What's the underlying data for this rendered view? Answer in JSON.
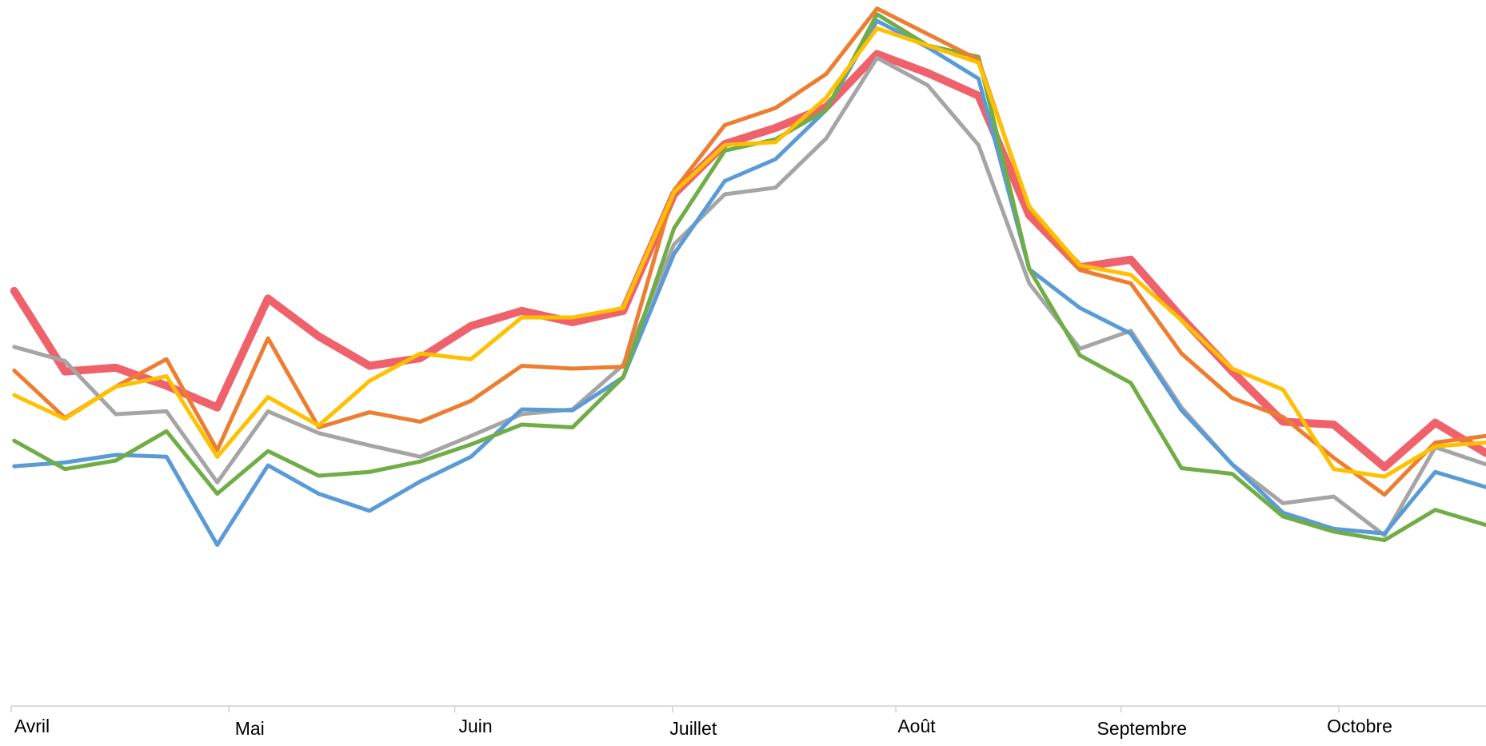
{
  "chart_data": {
    "type": "line",
    "x": [
      0,
      1,
      2,
      3,
      4,
      5,
      6,
      7,
      8,
      9,
      10,
      11,
      12,
      13,
      14,
      15,
      16,
      17,
      18,
      19,
      20,
      21,
      22,
      23,
      24,
      25,
      26,
      27,
      28,
      29
    ],
    "xlim": [
      -0.06,
      29
    ],
    "xticks": [
      {
        "value": -0.06,
        "label": "Avril"
      },
      {
        "value": 4.23,
        "label": "Mai"
      },
      {
        "value": 8.68,
        "label": "Juin"
      },
      {
        "value": 12.97,
        "label": "Juillet"
      },
      {
        "value": 17.37,
        "label": "Août"
      },
      {
        "value": 21.81,
        "label": "Septembre"
      },
      {
        "value": 26.1,
        "label": "Octobre"
      }
    ],
    "ylim": [
      0,
      745
    ],
    "series": [
      {
        "color": "#f0626b",
        "width": 10,
        "values": [
          438,
          353,
          357,
          338,
          315,
          430,
          390,
          359,
          367,
          401,
          417,
          405,
          417,
          540,
          593,
          610,
          632,
          688,
          668,
          644,
          518,
          463,
          471,
          410,
          353,
          300,
          297,
          252,
          299,
          267
        ]
      },
      {
        "color": "#a5a5a5",
        "width": 5,
        "values": [
          379,
          364,
          308,
          311,
          236,
          311,
          288,
          275,
          263,
          285,
          308,
          313,
          360,
          487,
          540,
          547,
          599,
          684,
          655,
          592,
          446,
          377,
          396,
          315,
          255,
          214,
          221,
          180,
          273,
          255
        ]
      },
      {
        "color": "#5b9bd5",
        "width": 5,
        "values": [
          253,
          257,
          265,
          263,
          170,
          254,
          224,
          206,
          237,
          263,
          313,
          312,
          347,
          477,
          554,
          577,
          629,
          723,
          695,
          662,
          461,
          420,
          393,
          312,
          255,
          204,
          187,
          182,
          247,
          231
        ]
      },
      {
        "color": "#70ad47",
        "width": 5,
        "values": [
          280,
          250,
          259,
          290,
          224,
          269,
          243,
          247,
          258,
          276,
          297,
          294,
          347,
          504,
          586,
          598,
          629,
          730,
          697,
          685,
          461,
          370,
          341,
          251,
          245,
          200,
          184,
          175,
          207,
          191
        ]
      },
      {
        "color": "#ed7d31",
        "width": 5,
        "values": [
          354,
          304,
          337,
          366,
          270,
          388,
          294,
          310,
          300,
          322,
          359,
          356,
          358,
          544,
          613,
          631,
          667,
          736,
          709,
          682,
          525,
          460,
          446,
          372,
          325,
          305,
          262,
          223,
          278,
          285
        ]
      },
      {
        "color": "#ffc000",
        "width": 5,
        "values": [
          328,
          303,
          337,
          348,
          263,
          326,
          296,
          343,
          372,
          366,
          410,
          410,
          420,
          542,
          592,
          595,
          642,
          715,
          697,
          679,
          527,
          465,
          455,
          407,
          356,
          334,
          250,
          242,
          274,
          278
        ]
      }
    ]
  }
}
